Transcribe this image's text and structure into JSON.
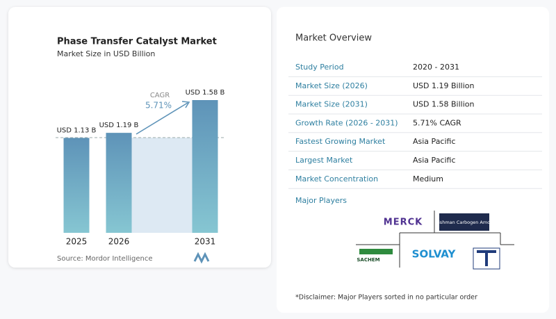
{
  "chart_data": {
    "type": "bar",
    "title": "Phase Transfer Catalyst Market",
    "subtitle": "Market Size in USD Billion",
    "categories": [
      "2025",
      "2026",
      "2031"
    ],
    "values": [
      1.13,
      1.19,
      1.58
    ],
    "value_labels": [
      "USD 1.13 B",
      "USD 1.19 B",
      "USD 1.58 B"
    ],
    "color": "#5e93b8",
    "annotation": {
      "label": "CAGR",
      "value": "5.71%"
    },
    "source": "Source: Mordor Intelligence"
  },
  "overview": {
    "title": "Market Overview",
    "rows": [
      [
        "Study Period",
        "2020 - 2031"
      ],
      [
        "Market Size (2026)",
        "USD 1.19 Billion"
      ],
      [
        "Market Size (2031)",
        "USD 1.58 Billion"
      ],
      [
        "Growth Rate (2026 - 2031)",
        "5.71% CAGR"
      ],
      [
        "Fastest Growing Market",
        "Asia Pacific"
      ],
      [
        "Largest Market",
        "Asia Pacific"
      ],
      [
        "Market Concentration",
        "Medium"
      ]
    ]
  },
  "major_players": {
    "title": "Major Players",
    "logos": [
      "MERCK",
      "Dishman Carbogen Amcis",
      "SACHEM",
      "SOLVAY"
    ]
  },
  "disclaimer": "*Disclaimer: Major Players sorted in no particular order"
}
